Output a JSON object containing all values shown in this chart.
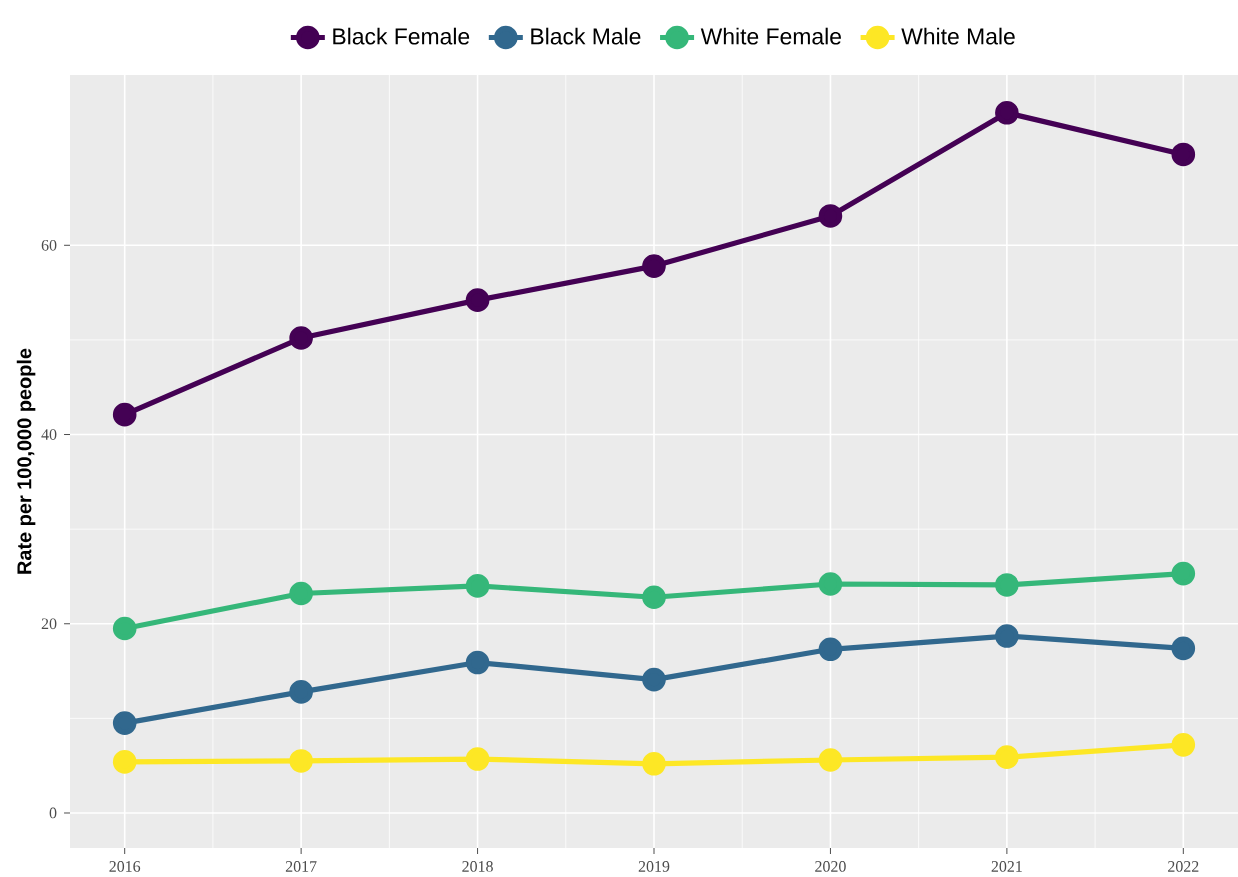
{
  "chart_data": {
    "type": "line",
    "ylabel": "Rate per 100,000 people",
    "x": [
      2016,
      2017,
      2018,
      2019,
      2020,
      2021,
      2022
    ],
    "series": [
      {
        "name": "Black Female",
        "color": "#440154",
        "values": [
          42.1,
          50.2,
          54.2,
          57.8,
          63.1,
          74.0,
          69.6
        ]
      },
      {
        "name": "Black Male",
        "color": "#31688e",
        "values": [
          9.5,
          12.8,
          15.9,
          14.1,
          17.3,
          18.7,
          17.4
        ]
      },
      {
        "name": "White Female",
        "color": "#35b779",
        "values": [
          19.5,
          23.2,
          24.0,
          22.8,
          24.2,
          24.1,
          25.3
        ]
      },
      {
        "name": "White Male",
        "color": "#fde725",
        "values": [
          5.4,
          5.5,
          5.7,
          5.2,
          5.6,
          5.9,
          7.2
        ]
      }
    ],
    "xlim": [
      2015.69,
      2022.31
    ],
    "ylim": [
      -3.7,
      78.0
    ],
    "xticks": [
      2016,
      2017,
      2018,
      2019,
      2020,
      2021,
      2022
    ],
    "yticks": [
      0,
      20,
      40,
      60
    ],
    "grid": true,
    "legend": "top",
    "marker": "circle",
    "line_style": "solid"
  }
}
